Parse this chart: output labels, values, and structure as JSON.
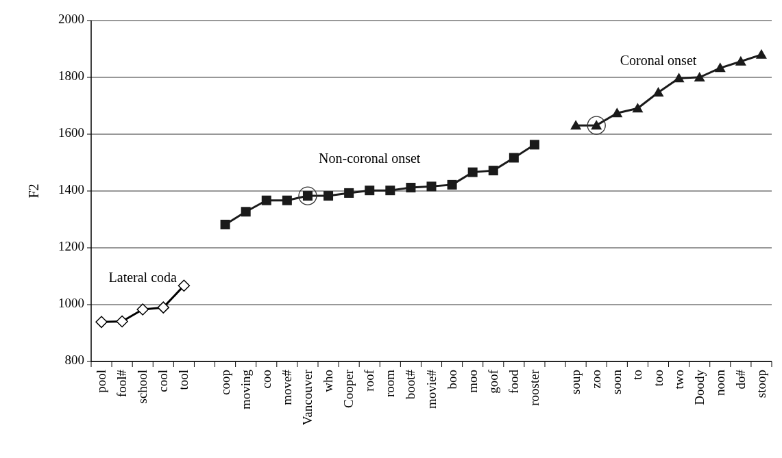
{
  "chart_data": {
    "type": "line",
    "categories": [
      "pool",
      "fool#",
      "school",
      "cool",
      "tool",
      null,
      "coop",
      "moving",
      "coo",
      "move#",
      "Vancouver",
      "who",
      "Cooper",
      "roof",
      "room",
      "boot#",
      "movie#",
      "boo",
      "moo",
      "goof",
      "food",
      "rooster",
      null,
      "soup",
      "zoo",
      "soon",
      "to",
      "too",
      "two",
      "Doody",
      "noon",
      "do#",
      "stoop"
    ],
    "ylabel": "F2",
    "ylim": [
      800,
      2000
    ],
    "yticks": [
      800,
      1000,
      1200,
      1400,
      1600,
      1800,
      2000
    ],
    "grid": "y",
    "series": [
      {
        "color": "#000000",
        "marker": "diamond",
        "values": [
          939,
          941,
          983,
          990,
          1067,
          null,
          null,
          null,
          null,
          null,
          null,
          null,
          null,
          null,
          null,
          null,
          null,
          null,
          null,
          null,
          null,
          null,
          null,
          null,
          null,
          null,
          null,
          null,
          null,
          null,
          null,
          null,
          null
        ]
      },
      {
        "color": "#1a1a1a",
        "marker": "square",
        "values": [
          null,
          null,
          null,
          null,
          null,
          null,
          1282,
          1327,
          1367,
          1367,
          1383,
          1383,
          1393,
          1402,
          1402,
          1412,
          1416,
          1422,
          1466,
          1472,
          1517,
          1563,
          null,
          null,
          null,
          null,
          null,
          null,
          null,
          null,
          null,
          null,
          null
        ]
      },
      {
        "color": "#1a1a1a",
        "marker": "triangle",
        "values": [
          null,
          null,
          null,
          null,
          null,
          null,
          null,
          null,
          null,
          null,
          null,
          null,
          null,
          null,
          null,
          null,
          null,
          null,
          null,
          null,
          null,
          null,
          null,
          1631,
          1631,
          1674,
          1691,
          1747,
          1797,
          1800,
          1833,
          1856,
          1880
        ]
      }
    ],
    "annotations": [
      "Lateral coda",
      "Non-coronal onset",
      "Coronal onset"
    ]
  }
}
